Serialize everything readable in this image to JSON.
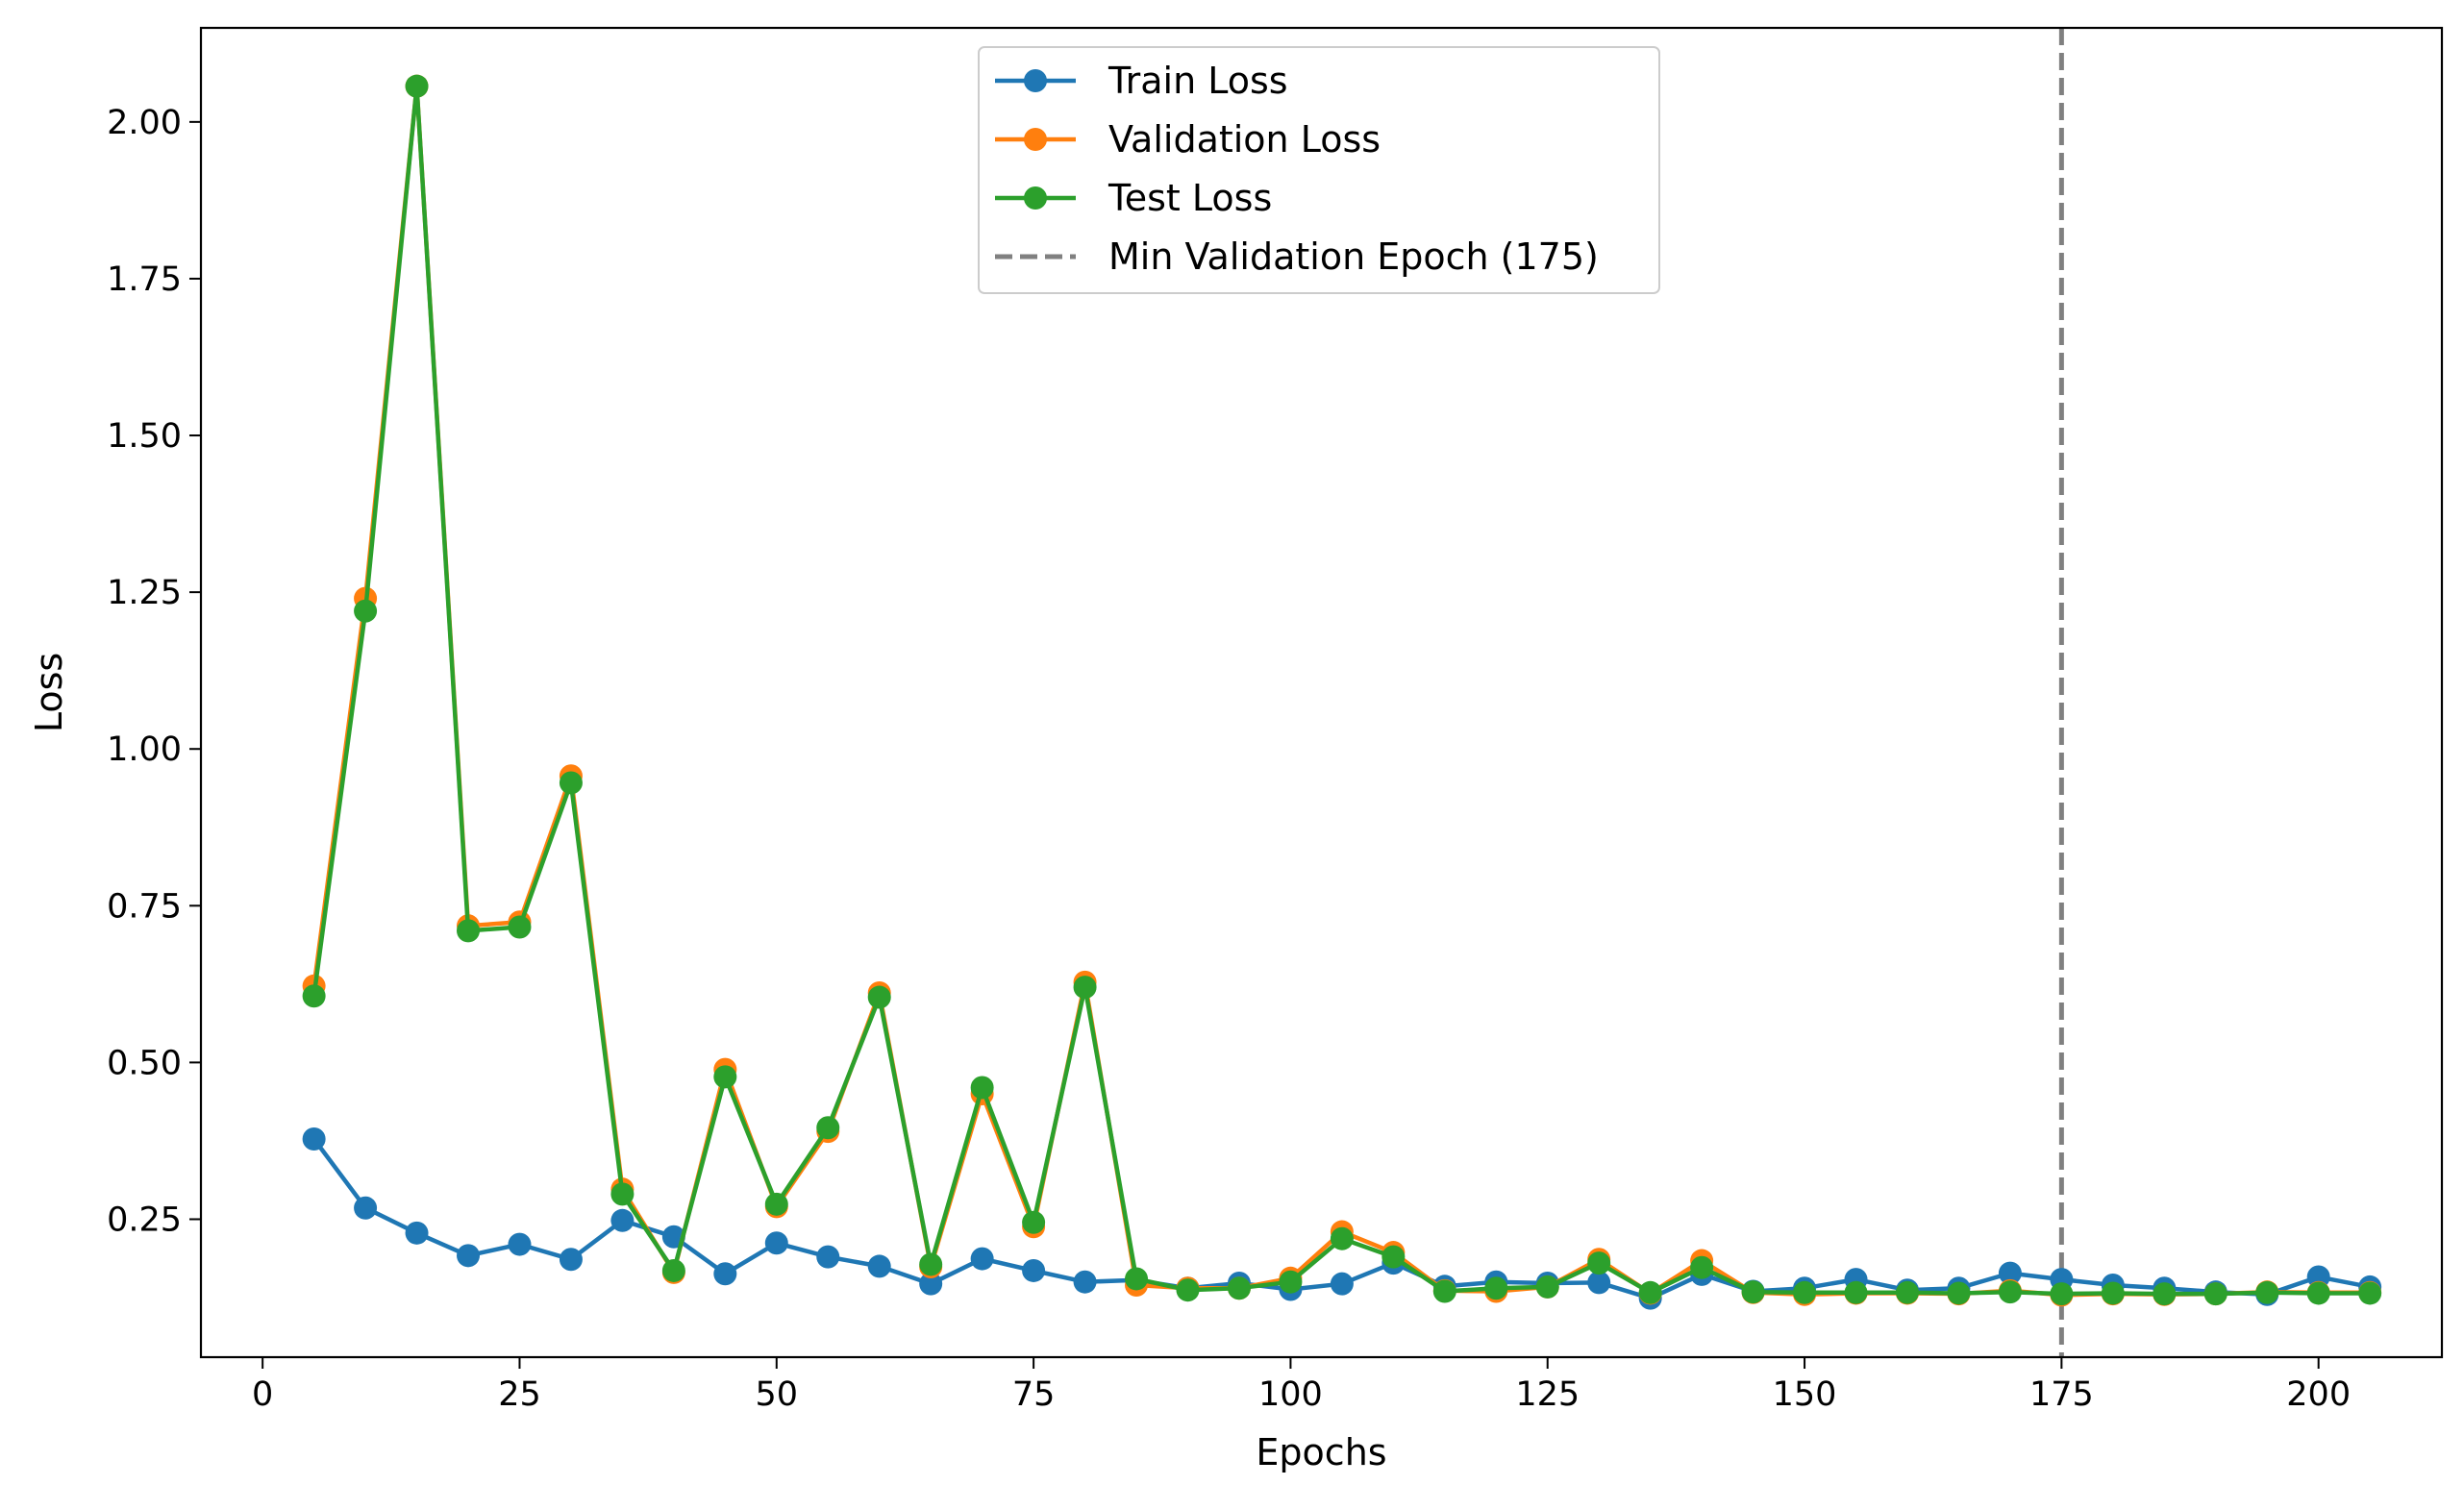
{
  "chart_data": {
    "type": "line",
    "title": "",
    "xlabel": "Epochs",
    "ylabel": "Loss",
    "xlim": [
      -6,
      212
    ],
    "ylim": [
      0.03,
      2.15
    ],
    "xticks": [
      0,
      25,
      50,
      75,
      100,
      125,
      150,
      175,
      200
    ],
    "yticks": [
      0.25,
      0.5,
      0.75,
      1.0,
      1.25,
      1.5,
      1.75,
      2.0
    ],
    "ytick_labels": [
      "0.25",
      "0.50",
      "0.75",
      "1.00",
      "1.25",
      "1.50",
      "1.75",
      "2.00"
    ],
    "grid": false,
    "legend_position": "top-center",
    "x": [
      5,
      10,
      15,
      20,
      25,
      30,
      35,
      40,
      45,
      50,
      55,
      60,
      65,
      70,
      75,
      80,
      85,
      90,
      95,
      100,
      105,
      110,
      115,
      120,
      125,
      130,
      135,
      140,
      145,
      150,
      155,
      160,
      165,
      170,
      175,
      180,
      185,
      190,
      195,
      200,
      205
    ],
    "series": [
      {
        "name": "Train Loss",
        "color": "#1f77b4",
        "values": [
          0.378,
          0.268,
          0.228,
          0.192,
          0.21,
          0.186,
          0.248,
          0.222,
          0.163,
          0.212,
          0.19,
          0.175,
          0.147,
          0.187,
          0.168,
          0.15,
          0.153,
          0.14,
          0.148,
          0.138,
          0.147,
          0.18,
          0.143,
          0.15,
          0.148,
          0.149,
          0.124,
          0.162,
          0.135,
          0.14,
          0.154,
          0.137,
          0.14,
          0.164,
          0.154,
          0.145,
          0.14,
          0.134,
          0.13,
          0.158,
          0.142
        ]
      },
      {
        "name": "Validation Loss",
        "color": "#ff7f0e",
        "values": [
          0.622,
          1.24,
          2.057,
          0.718,
          0.724,
          0.957,
          0.298,
          0.165,
          0.489,
          0.27,
          0.39,
          0.611,
          0.174,
          0.45,
          0.238,
          0.628,
          0.145,
          0.14,
          0.14,
          0.156,
          0.23,
          0.197,
          0.136,
          0.135,
          0.142,
          0.186,
          0.132,
          0.184,
          0.133,
          0.13,
          0.132,
          0.132,
          0.131,
          0.136,
          0.129,
          0.131,
          0.13,
          0.131,
          0.134,
          0.133,
          0.133
        ]
      },
      {
        "name": "Test Loss",
        "color": "#2ca02c",
        "values": [
          0.606,
          1.22,
          2.057,
          0.71,
          0.716,
          0.946,
          0.29,
          0.168,
          0.477,
          0.274,
          0.396,
          0.604,
          0.178,
          0.46,
          0.245,
          0.62,
          0.155,
          0.137,
          0.14,
          0.15,
          0.219,
          0.19,
          0.135,
          0.14,
          0.142,
          0.18,
          0.133,
          0.173,
          0.134,
          0.133,
          0.133,
          0.133,
          0.132,
          0.134,
          0.131,
          0.132,
          0.131,
          0.131,
          0.133,
          0.132,
          0.132
        ]
      }
    ],
    "vline": {
      "x": 175,
      "label": "Min Validation Epoch (175)",
      "color": "#808080",
      "style": "dashed"
    }
  }
}
